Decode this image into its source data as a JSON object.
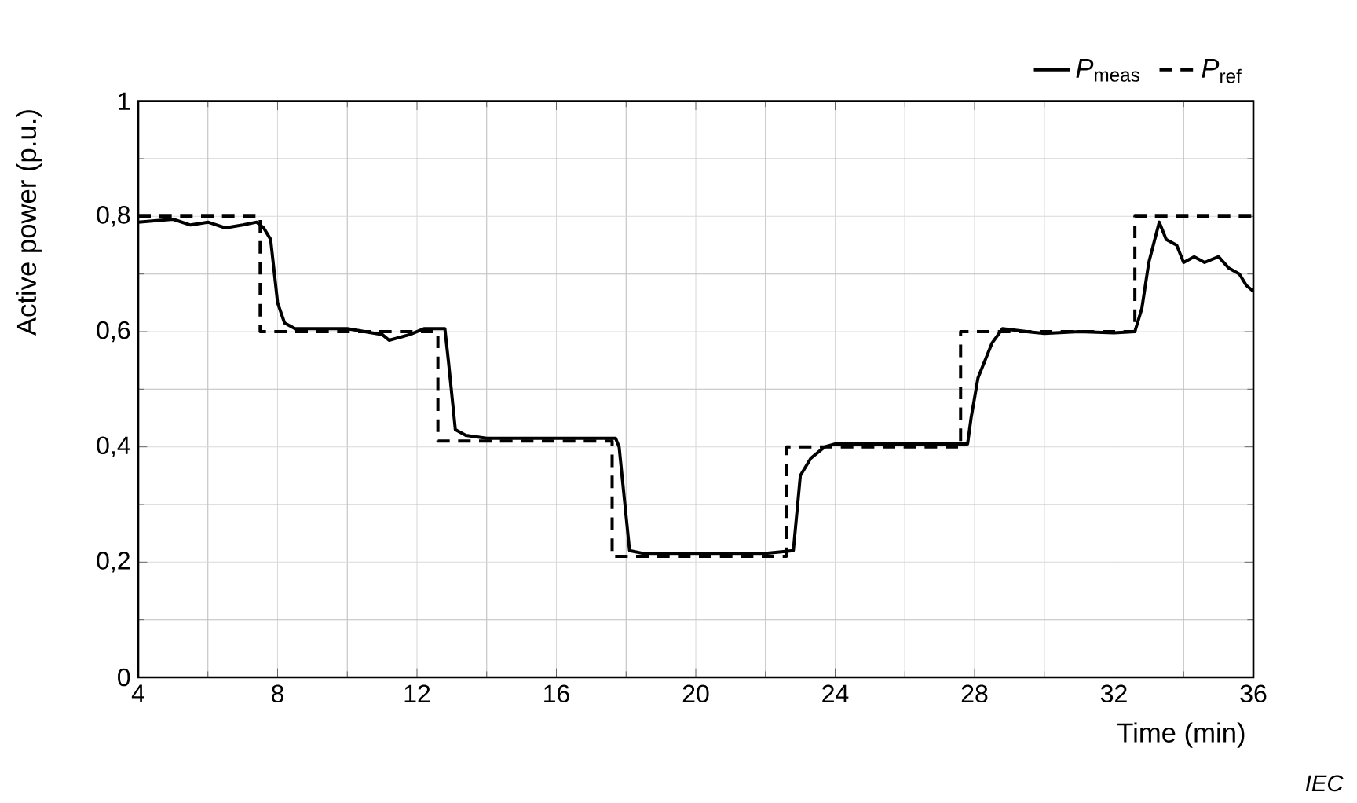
{
  "chart_data": {
    "type": "line",
    "xlabel": "Time  (min)",
    "ylabel": "Active power  (p.u.)",
    "xlim": [
      4,
      36
    ],
    "xticks": [
      4,
      8,
      12,
      16,
      20,
      24,
      28,
      32,
      36
    ],
    "ylim": [
      0,
      1
    ],
    "yticks": [
      0,
      {
        "value": 0.2,
        "label": "0,2"
      },
      {
        "value": 0.4,
        "label": "0,4"
      },
      {
        "value": 0.6,
        "label": "0,6"
      },
      {
        "value": 0.8,
        "label": "0,8"
      },
      1
    ],
    "grid": true,
    "legend": "top right",
    "annotations": [
      "IEC"
    ],
    "series": [
      {
        "name": "*P*$_{meas}$",
        "color": "#000000",
        "line_style": "solid",
        "x": [
          4,
          5,
          5.5,
          6,
          6.5,
          7,
          7.4,
          7.6,
          7.8,
          8.0,
          8.2,
          8.5,
          9,
          10,
          11,
          11.2,
          11.8,
          12.2,
          12.8,
          12.9,
          13.1,
          13.4,
          14,
          15,
          16,
          17,
          17.7,
          17.8,
          18.1,
          18.5,
          20,
          22,
          22.8,
          23.0,
          23.3,
          23.7,
          24,
          26,
          27.8,
          27.9,
          28.1,
          28.5,
          28.8,
          29.5,
          30,
          31,
          32,
          32.6,
          32.8,
          33,
          33.3,
          33.5,
          33.8,
          34,
          34.3,
          34.6,
          35,
          35.3,
          35.6,
          35.8,
          36
        ],
        "values": [
          0.79,
          0.795,
          0.785,
          0.79,
          0.78,
          0.785,
          0.79,
          0.78,
          0.76,
          0.65,
          0.615,
          0.605,
          0.605,
          0.605,
          0.595,
          0.585,
          0.595,
          0.605,
          0.605,
          0.55,
          0.43,
          0.42,
          0.415,
          0.415,
          0.415,
          0.415,
          0.415,
          0.4,
          0.22,
          0.215,
          0.215,
          0.215,
          0.22,
          0.35,
          0.38,
          0.4,
          0.405,
          0.405,
          0.405,
          0.45,
          0.52,
          0.58,
          0.605,
          0.6,
          0.597,
          0.6,
          0.598,
          0.6,
          0.64,
          0.72,
          0.79,
          0.76,
          0.75,
          0.72,
          0.73,
          0.72,
          0.73,
          0.71,
          0.7,
          0.68,
          0.67
        ]
      },
      {
        "name": "*P*$_{ref}$",
        "type": "step",
        "color": "#000000",
        "line_style": "dashed",
        "x": [
          4,
          7.5,
          12.6,
          17.6,
          22.6,
          27.6,
          32.6,
          36
        ],
        "values": [
          0.8,
          0.6,
          0.41,
          0.21,
          0.4,
          0.6,
          0.8,
          0.8
        ]
      }
    ]
  }
}
